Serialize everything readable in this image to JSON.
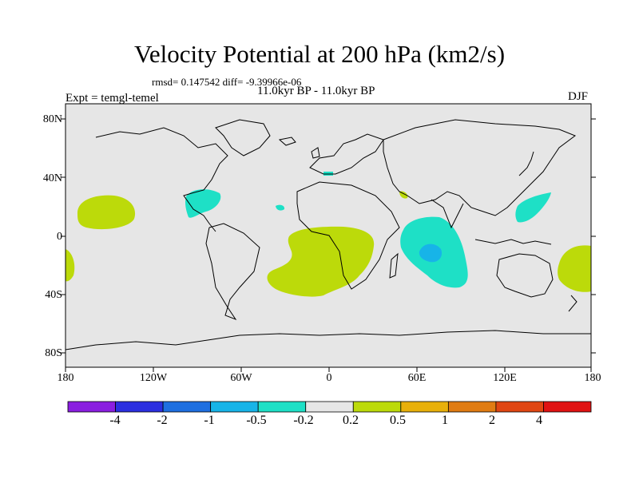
{
  "title": "Velocity Potential at 200 hPa (km2/s)",
  "stats": "rmsd= 0.147542 diff= -9.39966e-06",
  "period": "11.0kyr BP - 11.0kyr BP",
  "experiment": "Expt = temgl-temel",
  "season": "DJF",
  "axes": {
    "y_ticks": [
      "80N",
      "40N",
      "0",
      "40S",
      "80S"
    ],
    "x_ticks": [
      "180",
      "120W",
      "60W",
      "0",
      "60E",
      "120E",
      "180"
    ]
  },
  "colorbar": {
    "labels": [
      "-4",
      "-2",
      "-1",
      "-0.5",
      "-0.2",
      "0.2",
      "0.5",
      "1",
      "2",
      "4"
    ],
    "colors": [
      "#8a1ee0",
      "#2b2fe0",
      "#1e6fe0",
      "#17b4e8",
      "#1ee0c6",
      "#e6e6e6",
      "#bcda0a",
      "#e8b00a",
      "#e07c12",
      "#e04612",
      "#e01212"
    ]
  },
  "map": {
    "background": "#e6e6e6",
    "positive_color": "#bcda0a",
    "negative_color": "#1ee0c6",
    "strong_negative_color": "#17b4e8"
  }
}
